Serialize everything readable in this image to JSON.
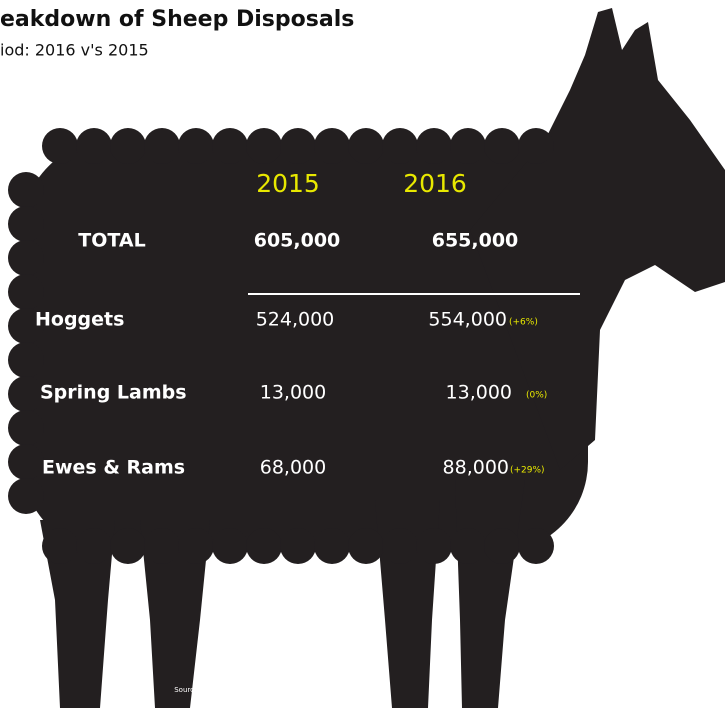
{
  "header": {
    "title": "eakdown of Sheep Disposals",
    "subtitle": "iod: 2016 v's 2015"
  },
  "table": {
    "headers": [
      "2015",
      "2016"
    ],
    "rows": [
      {
        "label": "TOTAL",
        "v2015": "605,000",
        "v2016": "655,000"
      },
      {
        "label": "Hoggets",
        "v2015": "524,000",
        "v2016": "554,000",
        "change": "(+6%)"
      },
      {
        "label": "Spring Lambs",
        "v2015": "13,000",
        "v2016": "13,000",
        "change": "(0%)"
      },
      {
        "label": "Ewes & Rams",
        "v2015": "68,000",
        "v2016": "88,000",
        "change": "(+29%)"
      }
    ]
  },
  "source": {
    "before": "Source: DAFM wk ending 17",
    "sup": "th",
    "after": " April  2016"
  }
}
